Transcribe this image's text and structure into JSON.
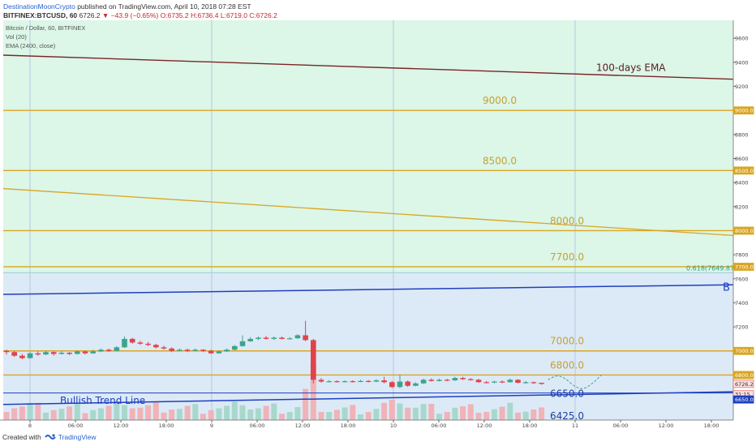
{
  "header": {
    "author": "DestinationMoonCrypto",
    "published": "published on TradingView.com, April 10, 2018 07:28 EST",
    "symbol_line": "BITFINEX:BTCUSD, 60",
    "price": "6726.2",
    "change": "▼ −43.9 (−0.65%)",
    "ohlc": "O:6735.2 H:6736.4 L:6719.0 C:6726.2"
  },
  "legend": {
    "title": "Bitcoin / Dollar, 60, BITFINEX",
    "vol": "Vol (20)",
    "ema": "EMA (2400, close)"
  },
  "footer": {
    "created": "Created with",
    "brand": "TradingView"
  },
  "colors": {
    "upper_zone": "#dcf6e8",
    "lower_zone": "#dceaf7",
    "level_line": "#d9a520",
    "ema_line": "#7b2525",
    "trend_line": "#1f3fbf",
    "candle_up": "#3fa38a",
    "candle_down": "#e0434b",
    "vol_up": "#a8d8cc",
    "vol_down": "#f0b3b8"
  },
  "chart_data": {
    "type": "candlestick",
    "ylim": [
      6425,
      9750
    ],
    "y_ticks": [
      7200,
      7400,
      7600,
      7800,
      8200,
      8400,
      8600,
      8800,
      9200,
      9400,
      9600
    ],
    "price_badges": [
      {
        "text": "9000.0",
        "value": 9000,
        "kind": "level"
      },
      {
        "text": "8500.0",
        "value": 8500,
        "kind": "level"
      },
      {
        "text": "8000.0",
        "value": 8000,
        "kind": "level"
      },
      {
        "text": "7700.0",
        "value": 7700,
        "kind": "level"
      },
      {
        "text": "7000.0",
        "value": 7000,
        "kind": "level"
      },
      {
        "text": "6800.0",
        "value": 6800,
        "kind": "level"
      },
      {
        "text": "6726.2",
        "value": 6726.2,
        "kind": "last"
      },
      {
        "text": "31:15",
        "value": 6700,
        "kind": "timer"
      },
      {
        "text": "6650.0",
        "value": 6650,
        "kind": "trend"
      }
    ],
    "x_ticks": [
      "8",
      "06:00",
      "12:00",
      "18:00",
      "9",
      "06:00",
      "12:00",
      "18:00",
      "10",
      "06:00",
      "12:00",
      "18:00",
      "11",
      "06:00",
      "12:00",
      "18:00"
    ],
    "levels": [
      {
        "value": 9000,
        "label": "9000.0"
      },
      {
        "value": 8500,
        "label": "8500.0"
      },
      {
        "value": 8000,
        "label": "8000.0"
      },
      {
        "value": 7700,
        "label": "7700.0"
      },
      {
        "value": 7000,
        "label": "7000.0"
      },
      {
        "value": 6800,
        "label": "6800.0"
      }
    ],
    "zone_boundary": 7660,
    "fib": {
      "label": "0.618(7649.87)",
      "value": 7649.87
    },
    "ema": {
      "label": "100-days EMA",
      "start": 9460,
      "end": 9260
    },
    "descending_line": {
      "start": 8350,
      "end": 7960
    },
    "blue_line": {
      "label": "B",
      "start": 7470,
      "end": 7550
    },
    "trend_line": {
      "label": "Bullish Trend Line",
      "start": 6555,
      "end": 6660
    },
    "labels": [
      {
        "text": "6650.0",
        "value": 6650
      },
      {
        "text": "6425.0",
        "value": 6425
      }
    ],
    "candles": [
      {
        "o": 7000,
        "c": 6990,
        "h": 7010,
        "l": 6970
      },
      {
        "o": 6990,
        "c": 6960,
        "h": 7000,
        "l": 6950
      },
      {
        "o": 6960,
        "c": 6940,
        "h": 6975,
        "l": 6930
      },
      {
        "o": 6940,
        "c": 6980,
        "h": 6990,
        "l": 6935
      },
      {
        "o": 6980,
        "c": 6970,
        "h": 6995,
        "l": 6960
      },
      {
        "o": 6970,
        "c": 6990,
        "h": 7000,
        "l": 6965
      },
      {
        "o": 6990,
        "c": 6975,
        "h": 6995,
        "l": 6960
      },
      {
        "o": 6975,
        "c": 6985,
        "h": 6995,
        "l": 6970
      },
      {
        "o": 6985,
        "c": 6975,
        "h": 6990,
        "l": 6965
      },
      {
        "o": 6975,
        "c": 6995,
        "h": 7005,
        "l": 6970
      },
      {
        "o": 6995,
        "c": 6980,
        "h": 7000,
        "l": 6970
      },
      {
        "o": 6980,
        "c": 6995,
        "h": 7010,
        "l": 6975
      },
      {
        "o": 6995,
        "c": 7010,
        "h": 7020,
        "l": 6990
      },
      {
        "o": 7010,
        "c": 7000,
        "h": 7020,
        "l": 6990
      },
      {
        "o": 7000,
        "c": 7030,
        "h": 7040,
        "l": 6995
      },
      {
        "o": 7030,
        "c": 7100,
        "h": 7120,
        "l": 7025
      },
      {
        "o": 7100,
        "c": 7070,
        "h": 7110,
        "l": 7060
      },
      {
        "o": 7070,
        "c": 7060,
        "h": 7085,
        "l": 7050
      },
      {
        "o": 7060,
        "c": 7050,
        "h": 7075,
        "l": 7040
      },
      {
        "o": 7050,
        "c": 7030,
        "h": 7060,
        "l": 7020
      },
      {
        "o": 7030,
        "c": 7020,
        "h": 7045,
        "l": 7010
      },
      {
        "o": 7020,
        "c": 7000,
        "h": 7030,
        "l": 6990
      },
      {
        "o": 7000,
        "c": 7010,
        "h": 7020,
        "l": 6995
      },
      {
        "o": 7010,
        "c": 7000,
        "h": 7020,
        "l": 6990
      },
      {
        "o": 7000,
        "c": 7010,
        "h": 7020,
        "l": 6995
      },
      {
        "o": 7010,
        "c": 7000,
        "h": 7015,
        "l": 6990
      },
      {
        "o": 7000,
        "c": 6980,
        "h": 7010,
        "l": 6975
      },
      {
        "o": 6980,
        "c": 6995,
        "h": 7005,
        "l": 6975
      },
      {
        "o": 6995,
        "c": 7010,
        "h": 7020,
        "l": 6990
      },
      {
        "o": 7010,
        "c": 7040,
        "h": 7050,
        "l": 7005
      },
      {
        "o": 7040,
        "c": 7080,
        "h": 7130,
        "l": 7035
      },
      {
        "o": 7080,
        "c": 7100,
        "h": 7115,
        "l": 7075
      },
      {
        "o": 7100,
        "c": 7110,
        "h": 7120,
        "l": 7090
      },
      {
        "o": 7110,
        "c": 7100,
        "h": 7125,
        "l": 7095
      },
      {
        "o": 7100,
        "c": 7110,
        "h": 7120,
        "l": 7090
      },
      {
        "o": 7110,
        "c": 7100,
        "h": 7120,
        "l": 7095
      },
      {
        "o": 7100,
        "c": 7105,
        "h": 7115,
        "l": 7095
      },
      {
        "o": 7105,
        "c": 7130,
        "h": 7140,
        "l": 7100
      },
      {
        "o": 7130,
        "c": 7090,
        "h": 7250,
        "l": 7080
      },
      {
        "o": 7090,
        "c": 6760,
        "h": 7100,
        "l": 6730
      },
      {
        "o": 6760,
        "c": 6745,
        "h": 6775,
        "l": 6735
      },
      {
        "o": 6745,
        "c": 6748,
        "h": 6758,
        "l": 6738
      },
      {
        "o": 6748,
        "c": 6745,
        "h": 6755,
        "l": 6738
      },
      {
        "o": 6745,
        "c": 6748,
        "h": 6755,
        "l": 6738
      },
      {
        "o": 6748,
        "c": 6745,
        "h": 6756,
        "l": 6738
      },
      {
        "o": 6745,
        "c": 6750,
        "h": 6760,
        "l": 6740
      },
      {
        "o": 6750,
        "c": 6745,
        "h": 6758,
        "l": 6738
      },
      {
        "o": 6745,
        "c": 6755,
        "h": 6765,
        "l": 6740
      },
      {
        "o": 6755,
        "c": 6740,
        "h": 6785,
        "l": 6730
      },
      {
        "o": 6740,
        "c": 6700,
        "h": 6750,
        "l": 6690
      },
      {
        "o": 6700,
        "c": 6745,
        "h": 6800,
        "l": 6690
      },
      {
        "o": 6745,
        "c": 6710,
        "h": 6755,
        "l": 6700
      },
      {
        "o": 6710,
        "c": 6730,
        "h": 6740,
        "l": 6705
      },
      {
        "o": 6730,
        "c": 6760,
        "h": 6770,
        "l": 6725
      },
      {
        "o": 6760,
        "c": 6750,
        "h": 6772,
        "l": 6745
      },
      {
        "o": 6750,
        "c": 6760,
        "h": 6770,
        "l": 6745
      },
      {
        "o": 6760,
        "c": 6755,
        "h": 6768,
        "l": 6748
      },
      {
        "o": 6755,
        "c": 6775,
        "h": 6785,
        "l": 6750
      },
      {
        "o": 6775,
        "c": 6765,
        "h": 6785,
        "l": 6758
      },
      {
        "o": 6765,
        "c": 6760,
        "h": 6775,
        "l": 6752
      },
      {
        "o": 6760,
        "c": 6740,
        "h": 6768,
        "l": 6735
      },
      {
        "o": 6740,
        "c": 6738,
        "h": 6750,
        "l": 6730
      },
      {
        "o": 6738,
        "c": 6745,
        "h": 6752,
        "l": 6730
      },
      {
        "o": 6745,
        "c": 6740,
        "h": 6755,
        "l": 6732
      },
      {
        "o": 6740,
        "c": 6760,
        "h": 6770,
        "l": 6735
      },
      {
        "o": 6760,
        "c": 6735,
        "h": 6765,
        "l": 6730
      },
      {
        "o": 6735,
        "c": 6740,
        "h": 6750,
        "l": 6728
      },
      {
        "o": 6740,
        "c": 6735,
        "h": 6745,
        "l": 6725
      },
      {
        "o": 6735,
        "c": 6726,
        "h": 6736,
        "l": 6719
      }
    ],
    "projection": [
      6760,
      6800,
      6770,
      6700,
      6680,
      6730,
      6800
    ]
  }
}
